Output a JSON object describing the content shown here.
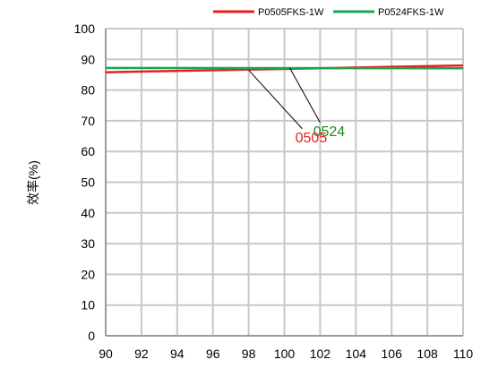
{
  "chart_data": {
    "type": "line",
    "title": "",
    "xlabel": "",
    "ylabel": "效率(%)",
    "xlim": [
      90,
      110
    ],
    "ylim": [
      0,
      100
    ],
    "xticks": [
      90,
      92,
      94,
      96,
      98,
      100,
      102,
      104,
      106,
      108,
      110
    ],
    "yticks": [
      0,
      10,
      20,
      30,
      40,
      50,
      60,
      70,
      80,
      90,
      100
    ],
    "xtick_labels": [
      "90",
      "92",
      "94",
      "96",
      "98",
      "100",
      "102",
      "104",
      "106",
      "108",
      "110"
    ],
    "ytick_labels": [
      "0",
      "10",
      "20",
      "30",
      "40",
      "50",
      "60",
      "70",
      "80",
      "90",
      "100"
    ],
    "grid": true,
    "legend_placement": "top-right",
    "series": [
      {
        "name": "P0505FKS-1W",
        "color": "#e8201c",
        "x": [
          90,
          110
        ],
        "y": [
          85.8,
          88.0
        ]
      },
      {
        "name": "P0524FKS-1W",
        "color": "#1aa551",
        "x": [
          90,
          110
        ],
        "y": [
          87.2,
          87.1
        ]
      }
    ],
    "annotations": [
      {
        "text": "0524",
        "color": "#1a8a1a",
        "target": [
          100.3,
          87.2
        ],
        "label_at": [
          102.5,
          66.5
        ]
      },
      {
        "text": "0505",
        "color": "#e8201c",
        "target": [
          98.0,
          86.5
        ],
        "label_at": [
          101.5,
          64.5
        ]
      }
    ]
  }
}
